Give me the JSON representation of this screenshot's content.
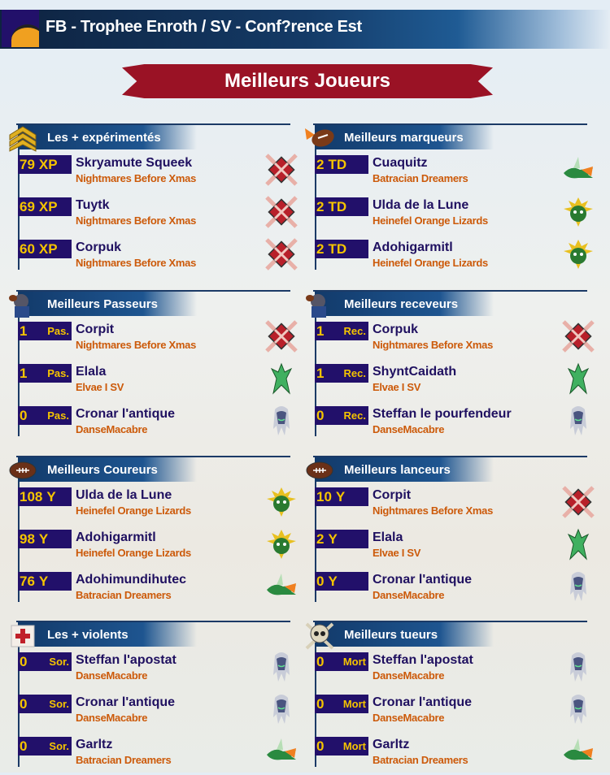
{
  "header": {
    "title": "FB - Trophee Enroth / SV - Conf?rence Est"
  },
  "banner": {
    "title": "Meilleurs Joueurs"
  },
  "sections": [
    {
      "title": "Les + expérimentés",
      "icon": "chevron-rank-icon",
      "split": false,
      "rows": [
        {
          "value": "79",
          "unit": "XP",
          "name": "Skryamute Squeek",
          "team": "Nightmares Before Xmas",
          "team_icon": "nightmares-crest-icon"
        },
        {
          "value": "69",
          "unit": "XP",
          "name": "Tuytk",
          "team": "Nightmares Before Xmas",
          "team_icon": "nightmares-crest-icon"
        },
        {
          "value": "60",
          "unit": "XP",
          "name": "Corpuk",
          "team": "Nightmares Before Xmas",
          "team_icon": "nightmares-crest-icon"
        }
      ]
    },
    {
      "title": "Meilleurs marqueurs",
      "icon": "flaming-ball-icon",
      "split": false,
      "rows": [
        {
          "value": "2",
          "unit": "TD",
          "name": "Cuaquitz",
          "team": "Batracian Dreamers",
          "team_icon": "batracian-icon"
        },
        {
          "value": "2",
          "unit": "TD",
          "name": "Ulda de la Lune",
          "team": "Heinefel Orange Lizards",
          "team_icon": "lizard-icon"
        },
        {
          "value": "2",
          "unit": "TD",
          "name": "Adohigarmitl",
          "team": "Heinefel Orange Lizards",
          "team_icon": "lizard-icon"
        }
      ]
    },
    {
      "title": "Meilleurs Passeurs",
      "icon": "passer-icon",
      "split": true,
      "rows": [
        {
          "value": "1",
          "unit": "Pas.",
          "name": "Corpit",
          "team": "Nightmares Before Xmas",
          "team_icon": "nightmares-crest-icon"
        },
        {
          "value": "1",
          "unit": "Pas.",
          "name": "Elala",
          "team": "Elvae I SV",
          "team_icon": "elf-icon"
        },
        {
          "value": "0",
          "unit": "Pas.",
          "name": "Cronar l'antique",
          "team": "DanseMacabre",
          "team_icon": "ghost-icon"
        }
      ]
    },
    {
      "title": "Meilleurs receveurs",
      "icon": "receiver-icon",
      "split": true,
      "rows": [
        {
          "value": "1",
          "unit": "Rec.",
          "name": "Corpuk",
          "team": "Nightmares Before Xmas",
          "team_icon": "nightmares-crest-icon"
        },
        {
          "value": "1",
          "unit": "Rec.",
          "name": "ShyntCaidath",
          "team": "Elvae I SV",
          "team_icon": "elf-icon"
        },
        {
          "value": "0",
          "unit": "Rec.",
          "name": "Steffan le pourfendeur",
          "team": "DanseMacabre",
          "team_icon": "ghost-icon"
        }
      ]
    },
    {
      "title": "Meilleurs Coureurs",
      "icon": "football-icon",
      "split": false,
      "rows": [
        {
          "value": "108",
          "unit": "Y",
          "name": "Ulda de la Lune",
          "team": "Heinefel Orange Lizards",
          "team_icon": "lizard-icon"
        },
        {
          "value": "98",
          "unit": "Y",
          "name": "Adohigarmitl",
          "team": "Heinefel Orange Lizards",
          "team_icon": "lizard-icon"
        },
        {
          "value": "76",
          "unit": "Y",
          "name": "Adohimundihutec",
          "team": "Batracian Dreamers",
          "team_icon": "batracian-icon"
        }
      ]
    },
    {
      "title": "Meilleurs lanceurs",
      "icon": "football-icon",
      "split": false,
      "rows": [
        {
          "value": "10",
          "unit": "Y",
          "name": "Corpit",
          "team": "Nightmares Before Xmas",
          "team_icon": "nightmares-crest-icon"
        },
        {
          "value": "2",
          "unit": "Y",
          "name": "Elala",
          "team": "Elvae I SV",
          "team_icon": "elf-icon"
        },
        {
          "value": "0",
          "unit": "Y",
          "name": "Cronar l'antique",
          "team": "DanseMacabre",
          "team_icon": "ghost-icon"
        }
      ]
    },
    {
      "title": "Les + violents",
      "icon": "red-cross-icon",
      "split": true,
      "rows": [
        {
          "value": "0",
          "unit": "Sor.",
          "name": "Steffan l'apostat",
          "team": "DanseMacabre",
          "team_icon": "ghost-icon"
        },
        {
          "value": "0",
          "unit": "Sor.",
          "name": "Cronar l'antique",
          "team": "DanseMacabre",
          "team_icon": "ghost-icon"
        },
        {
          "value": "0",
          "unit": "Sor.",
          "name": "Garltz",
          "team": "Batracian Dreamers",
          "team_icon": "batracian-icon"
        }
      ]
    },
    {
      "title": "Meilleurs tueurs",
      "icon": "skull-crossbones-icon",
      "split": true,
      "rows": [
        {
          "value": "0",
          "unit": "Mort",
          "name": "Steffan l'apostat",
          "team": "DanseMacabre",
          "team_icon": "ghost-icon"
        },
        {
          "value": "0",
          "unit": "Mort",
          "name": "Cronar l'antique",
          "team": "DanseMacabre",
          "team_icon": "ghost-icon"
        },
        {
          "value": "0",
          "unit": "Mort",
          "name": "Garltz",
          "team": "Batracian Dreamers",
          "team_icon": "batracian-icon"
        }
      ]
    }
  ],
  "colors": {
    "value_bg": "#22106a",
    "value_text": "#f5c400",
    "name": "#1f1060",
    "team": "#cc5a0a",
    "banner": "#9a1225"
  }
}
